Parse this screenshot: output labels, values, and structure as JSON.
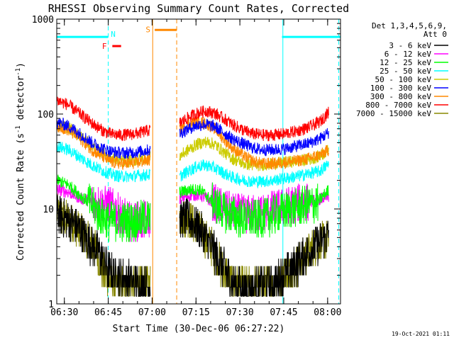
{
  "chart_data": {
    "type": "line",
    "title": "RHESSI Observing Summary Count Rates, Corrected",
    "xlabel": "Start Time (30-Dec-06 06:27:22)",
    "ylabel": "Corrected Count Rate (s",
    "ylabel_sup": "-1",
    "ylabel_mid": " detector",
    "ylabel_sup2": "-1",
    "ylabel_end": ")",
    "ylog": true,
    "xlim_minutes": [
      0,
      97
    ],
    "ylim": [
      1,
      1000
    ],
    "x_ticks": [
      {
        "m": 2.6,
        "label": "06:30"
      },
      {
        "m": 17.6,
        "label": "06:45"
      },
      {
        "m": 32.6,
        "label": "07:00"
      },
      {
        "m": 47.6,
        "label": "07:15"
      },
      {
        "m": 62.6,
        "label": "07:30"
      },
      {
        "m": 77.6,
        "label": "07:45"
      },
      {
        "m": 92.6,
        "label": "08:00"
      }
    ],
    "y_ticks": [
      {
        "v": 1,
        "label": "1"
      },
      {
        "v": 10,
        "label": "10"
      },
      {
        "v": 100,
        "label": "100"
      },
      {
        "v": 1000,
        "label": "1000"
      }
    ],
    "legend_header": [
      "Det 1,3,4,5,6,9,",
      "Att 0"
    ],
    "series": [
      {
        "name": "3 - 6 keV",
        "color": "#000000",
        "before": [
          [
            0,
            9
          ],
          [
            6,
            7
          ],
          [
            10,
            5
          ],
          [
            14,
            3.6
          ],
          [
            16,
            2.8
          ],
          [
            18,
            2.2
          ],
          [
            20,
            2
          ],
          [
            24,
            1.8
          ],
          [
            28,
            1.6
          ],
          [
            32,
            1.5
          ]
        ],
        "after": [
          [
            42,
            8
          ],
          [
            45,
            8
          ],
          [
            49,
            6
          ],
          [
            53,
            4
          ],
          [
            57,
            2.4
          ],
          [
            60,
            1.6
          ],
          [
            64,
            1.4
          ],
          [
            70,
            1.5
          ],
          [
            74,
            1.6
          ],
          [
            80,
            2.3
          ],
          [
            84,
            3.1
          ],
          [
            88,
            4
          ],
          [
            93,
            5.4
          ]
        ]
      },
      {
        "name": "6 - 12 keV",
        "color": "#ff00ff",
        "before": [
          [
            0,
            16
          ],
          [
            4,
            15
          ],
          [
            8,
            13
          ],
          [
            12,
            12
          ],
          [
            16,
            11
          ],
          [
            18,
            11
          ],
          [
            20,
            10
          ],
          [
            23,
            8
          ],
          [
            26,
            7.2
          ],
          [
            29,
            7.5
          ],
          [
            32,
            8
          ]
        ],
        "after": [
          [
            42,
            13
          ],
          [
            46,
            14
          ],
          [
            49,
            14
          ],
          [
            52,
            12.5
          ],
          [
            56,
            10.5
          ],
          [
            60,
            9.3
          ],
          [
            64,
            8.8
          ],
          [
            68,
            8.8
          ],
          [
            72,
            9.4
          ],
          [
            76,
            10.2
          ],
          [
            80,
            11
          ],
          [
            84,
            11.7
          ],
          [
            88,
            12.3
          ],
          [
            93,
            13.5
          ]
        ]
      },
      {
        "name": "12 - 25 keV",
        "color": "#00ff00",
        "before": [
          [
            0,
            20
          ],
          [
            4,
            18
          ],
          [
            8,
            14
          ],
          [
            12,
            11
          ],
          [
            15,
            8.5
          ],
          [
            18,
            7.5
          ],
          [
            22,
            7.3
          ],
          [
            26,
            7.4
          ],
          [
            29,
            7.7
          ],
          [
            32,
            8
          ]
        ],
        "after": [
          [
            42,
            15
          ],
          [
            46,
            16
          ],
          [
            49,
            16
          ],
          [
            52,
            13
          ],
          [
            55,
            10.5
          ],
          [
            58,
            9
          ],
          [
            62,
            8.2
          ],
          [
            66,
            7.8
          ],
          [
            70,
            7.9
          ],
          [
            74,
            8.7
          ],
          [
            78,
            9.5
          ],
          [
            82,
            10.4
          ],
          [
            86,
            11.1
          ],
          [
            89,
            11.6
          ],
          [
            93,
            16
          ]
        ]
      },
      {
        "name": "25 - 50 keV",
        "color": "#00ffff",
        "before": [
          [
            0,
            46
          ],
          [
            4,
            42
          ],
          [
            8,
            35
          ],
          [
            12,
            29
          ],
          [
            16,
            25
          ],
          [
            19,
            23
          ],
          [
            22,
            22
          ],
          [
            25,
            22
          ],
          [
            28,
            22.5
          ],
          [
            32,
            23
          ]
        ],
        "after": [
          [
            42,
            22
          ],
          [
            45,
            25
          ],
          [
            48,
            28
          ],
          [
            51,
            29
          ],
          [
            54,
            27
          ],
          [
            57,
            24
          ],
          [
            60,
            21.5
          ],
          [
            64,
            20
          ],
          [
            67,
            19.5
          ],
          [
            70,
            19.5
          ],
          [
            74,
            20
          ],
          [
            78,
            21
          ],
          [
            82,
            22
          ],
          [
            86,
            23.5
          ],
          [
            90,
            25
          ],
          [
            93,
            30
          ]
        ]
      },
      {
        "name": "50 - 100 keV",
        "color": "#cccc00",
        "before": [
          [
            0,
            78
          ],
          [
            4,
            72
          ],
          [
            8,
            59
          ],
          [
            12,
            46
          ],
          [
            16,
            38
          ],
          [
            19,
            34
          ],
          [
            22,
            32
          ],
          [
            25,
            32
          ],
          [
            28,
            33
          ],
          [
            32,
            35
          ]
        ],
        "after": [
          [
            42,
            36
          ],
          [
            45,
            42
          ],
          [
            48,
            48
          ],
          [
            51,
            51
          ],
          [
            54,
            48
          ],
          [
            57,
            40
          ],
          [
            60,
            34
          ],
          [
            64,
            30
          ],
          [
            67,
            29
          ],
          [
            70,
            29
          ],
          [
            74,
            30
          ],
          [
            78,
            31
          ],
          [
            82,
            32
          ],
          [
            86,
            33
          ],
          [
            90,
            36
          ],
          [
            93,
            42
          ]
        ]
      },
      {
        "name": "100 - 300 keV",
        "color": "#0000ff",
        "before": [
          [
            0,
            82
          ],
          [
            4,
            75
          ],
          [
            8,
            62
          ],
          [
            12,
            50
          ],
          [
            16,
            43
          ],
          [
            19,
            40
          ],
          [
            22,
            39
          ],
          [
            25,
            39
          ],
          [
            28,
            40
          ],
          [
            32,
            42
          ]
        ],
        "after": [
          [
            42,
            62
          ],
          [
            45,
            70
          ],
          [
            48,
            76
          ],
          [
            51,
            78
          ],
          [
            54,
            74
          ],
          [
            57,
            64
          ],
          [
            60,
            55
          ],
          [
            64,
            48
          ],
          [
            67,
            44
          ],
          [
            70,
            42
          ],
          [
            74,
            42
          ],
          [
            78,
            43
          ],
          [
            82,
            46
          ],
          [
            86,
            49
          ],
          [
            90,
            55
          ],
          [
            93,
            64
          ]
        ]
      },
      {
        "name": "300 - 800 keV",
        "color": "#ff8800",
        "before": [
          [
            0,
            75
          ],
          [
            4,
            68
          ],
          [
            8,
            55
          ],
          [
            12,
            42
          ],
          [
            16,
            35
          ],
          [
            19,
            31
          ],
          [
            22,
            30
          ],
          [
            25,
            30
          ],
          [
            28,
            31
          ],
          [
            32,
            33
          ]
        ],
        "after": [
          [
            42,
            70
          ],
          [
            45,
            78
          ],
          [
            48,
            82
          ],
          [
            51,
            80
          ],
          [
            54,
            70
          ],
          [
            57,
            55
          ],
          [
            60,
            44
          ],
          [
            64,
            36
          ],
          [
            67,
            32
          ],
          [
            70,
            30
          ],
          [
            74,
            30
          ],
          [
            78,
            31
          ],
          [
            82,
            32
          ],
          [
            86,
            34
          ],
          [
            90,
            37
          ],
          [
            93,
            42
          ]
        ]
      },
      {
        "name": "800 - 7000 keV",
        "color": "#ff0000",
        "before": [
          [
            0,
            140
          ],
          [
            4,
            125
          ],
          [
            8,
            100
          ],
          [
            12,
            80
          ],
          [
            16,
            66
          ],
          [
            19,
            61
          ],
          [
            22,
            60
          ],
          [
            25,
            61
          ],
          [
            28,
            63
          ],
          [
            32,
            68
          ]
        ],
        "after": [
          [
            42,
            80
          ],
          [
            45,
            92
          ],
          [
            48,
            102
          ],
          [
            51,
            108
          ],
          [
            54,
            102
          ],
          [
            57,
            90
          ],
          [
            60,
            78
          ],
          [
            64,
            67
          ],
          [
            67,
            62
          ],
          [
            70,
            60
          ],
          [
            74,
            60
          ],
          [
            78,
            62
          ],
          [
            82,
            66
          ],
          [
            86,
            72
          ],
          [
            90,
            83
          ],
          [
            93,
            105
          ]
        ]
      },
      {
        "name": "7000 - 15000 keV",
        "color": "#888800",
        "before": [
          [
            0,
            9
          ],
          [
            6,
            7
          ],
          [
            10,
            5
          ],
          [
            14,
            3.4
          ],
          [
            16,
            2.2
          ],
          [
            18,
            1.7
          ],
          [
            20,
            1.5
          ],
          [
            26,
            1.6
          ],
          [
            32,
            1.6
          ]
        ],
        "after": [
          [
            42,
            8
          ],
          [
            45,
            8
          ],
          [
            49,
            6
          ],
          [
            53,
            4
          ],
          [
            57,
            2.3
          ],
          [
            60,
            1.6
          ],
          [
            64,
            1.5
          ],
          [
            70,
            1.5
          ],
          [
            74,
            1.6
          ],
          [
            80,
            2.2
          ],
          [
            84,
            3.1
          ],
          [
            88,
            4
          ],
          [
            93,
            5
          ]
        ]
      }
    ],
    "gap_minutes": [
      32.8,
      42
    ],
    "bars": [
      {
        "label": "N",
        "color": "#00ffff",
        "segments": [
          [
            0,
            17.5
          ],
          [
            77,
            97
          ]
        ],
        "y": 650,
        "label_at": 19.3,
        "label_y": 700
      },
      {
        "label": "F",
        "color": "#ff0000",
        "segments": [
          [
            19,
            22
          ]
        ],
        "y": 520,
        "label_at": 16.3,
        "label_y": 520
      },
      {
        "label": "S",
        "color": "#ff8800",
        "segments": [
          [
            33.5,
            41
          ]
        ],
        "y": 770,
        "label_at": 31.2,
        "label_y": 780
      }
    ],
    "vlines": [
      {
        "m": 17.6,
        "color": "#00ffff",
        "dash": true
      },
      {
        "m": 32.8,
        "color": "#ff8800",
        "dash": false
      },
      {
        "m": 41.0,
        "color": "#ff8800",
        "dash": true
      },
      {
        "m": 77.3,
        "color": "#00ffff",
        "dash": false
      },
      {
        "m": 96.4,
        "color": "#00ffff",
        "dash": true
      }
    ],
    "grid": false,
    "legend_position": "right"
  },
  "footer": {
    "timestamp": "19-Oct-2021 01:11"
  }
}
